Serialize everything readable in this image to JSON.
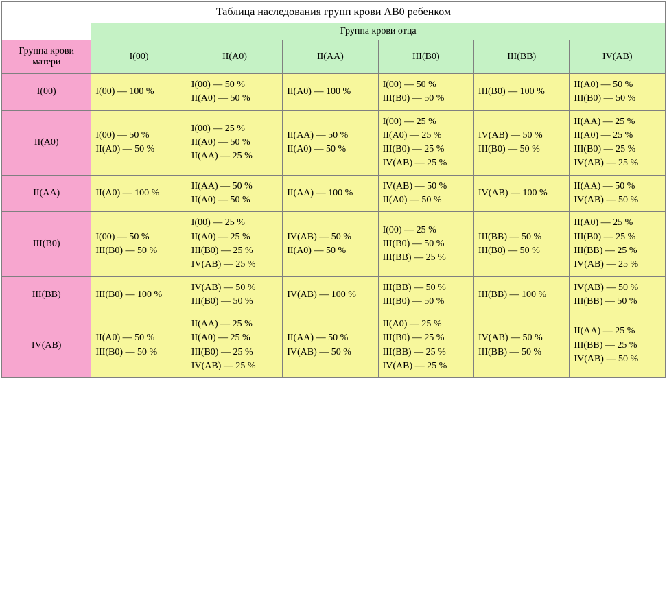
{
  "title": "Таблица наследования групп крови AB0 ребенком",
  "fatherHeader": "Группа крови отца",
  "motherHeader": "Группа крови матери",
  "fatherCols": [
    "I(00)",
    "II(A0)",
    "II(AA)",
    "III(B0)",
    "III(BB)",
    "IV(AB)"
  ],
  "motherRows": [
    "I(00)",
    "II(A0)",
    "II(AA)",
    "III(B0)",
    "III(BB)",
    "IV(AB)"
  ],
  "cells": [
    [
      "I(00) — 100 %",
      "I(00) — 50 %\nII(A0) — 50 %",
      "II(A0) — 100 %",
      "I(00) — 50 %\nIII(B0) — 50 %",
      "III(B0) — 100 %",
      "II(A0) — 50 %\nIII(B0) — 50 %"
    ],
    [
      "I(00) — 50 %\nII(A0) — 50 %",
      "I(00) — 25 %\nII(A0) — 50 %\nII(AA) — 25 %",
      "II(AA) — 50 %\nII(A0) — 50 %",
      "I(00) — 25 %\nII(A0) — 25 %\nIII(B0) — 25 %\nIV(AB) — 25 %",
      "IV(AB) — 50 %\nIII(B0) — 50 %",
      "II(AA) — 25 %\nII(A0) — 25 %\nIII(B0) — 25 %\nIV(AB) — 25 %"
    ],
    [
      "II(A0) — 100 %",
      "II(AA) — 50 %\nII(A0) — 50 %",
      "II(AA) — 100 %",
      "IV(AB) — 50 %\nII(A0) — 50 %",
      "IV(AB) — 100 %",
      "II(AA) — 50 %\nIV(AB) — 50 %"
    ],
    [
      "I(00) — 50 %\nIII(B0) — 50 %",
      "I(00) — 25 %\nII(A0) — 25 %\nIII(B0) — 25 %\nIV(AB) — 25 %",
      "IV(AB) — 50 %\nII(A0) — 50 %",
      "I(00) — 25 %\nIII(B0) — 50 %\nIII(BB) — 25 %",
      "III(BB) — 50 %\nIII(B0) — 50 %",
      "II(A0) — 25 %\nIII(B0) — 25 %\nIII(BB) — 25 %\nIV(AB) — 25 %"
    ],
    [
      "III(B0) — 100 %",
      "IV(AB) — 50 %\nIII(B0) — 50 %",
      "IV(AB) — 100 %",
      "III(BB) — 50 %\nIII(B0) — 50 %",
      "III(BB) — 100 %",
      "IV(AB) — 50 %\nIII(BB) — 50 %"
    ],
    [
      "II(A0) — 50 %\nIII(B0) — 50 %",
      "II(AA) — 25 %\nII(A0) — 25 %\nIII(B0) — 25 %\nIV(AB) — 25 %",
      "II(AA) — 50 %\nIV(AB) — 50 %",
      "II(A0) — 25 %\nIII(B0) — 25 %\nIII(BB) — 25 %\nIV(AB) — 25 %",
      "IV(AB) — 50 %\nIII(BB) — 50 %",
      "II(AA) — 25 %\nIII(BB) — 25 %\nIV(AB) — 50 %"
    ]
  ],
  "colors": {
    "motherBg": "#f7a6cf",
    "fatherBg": "#c5f2c5",
    "dataBg": "#f7f79c",
    "border": "#808080"
  }
}
